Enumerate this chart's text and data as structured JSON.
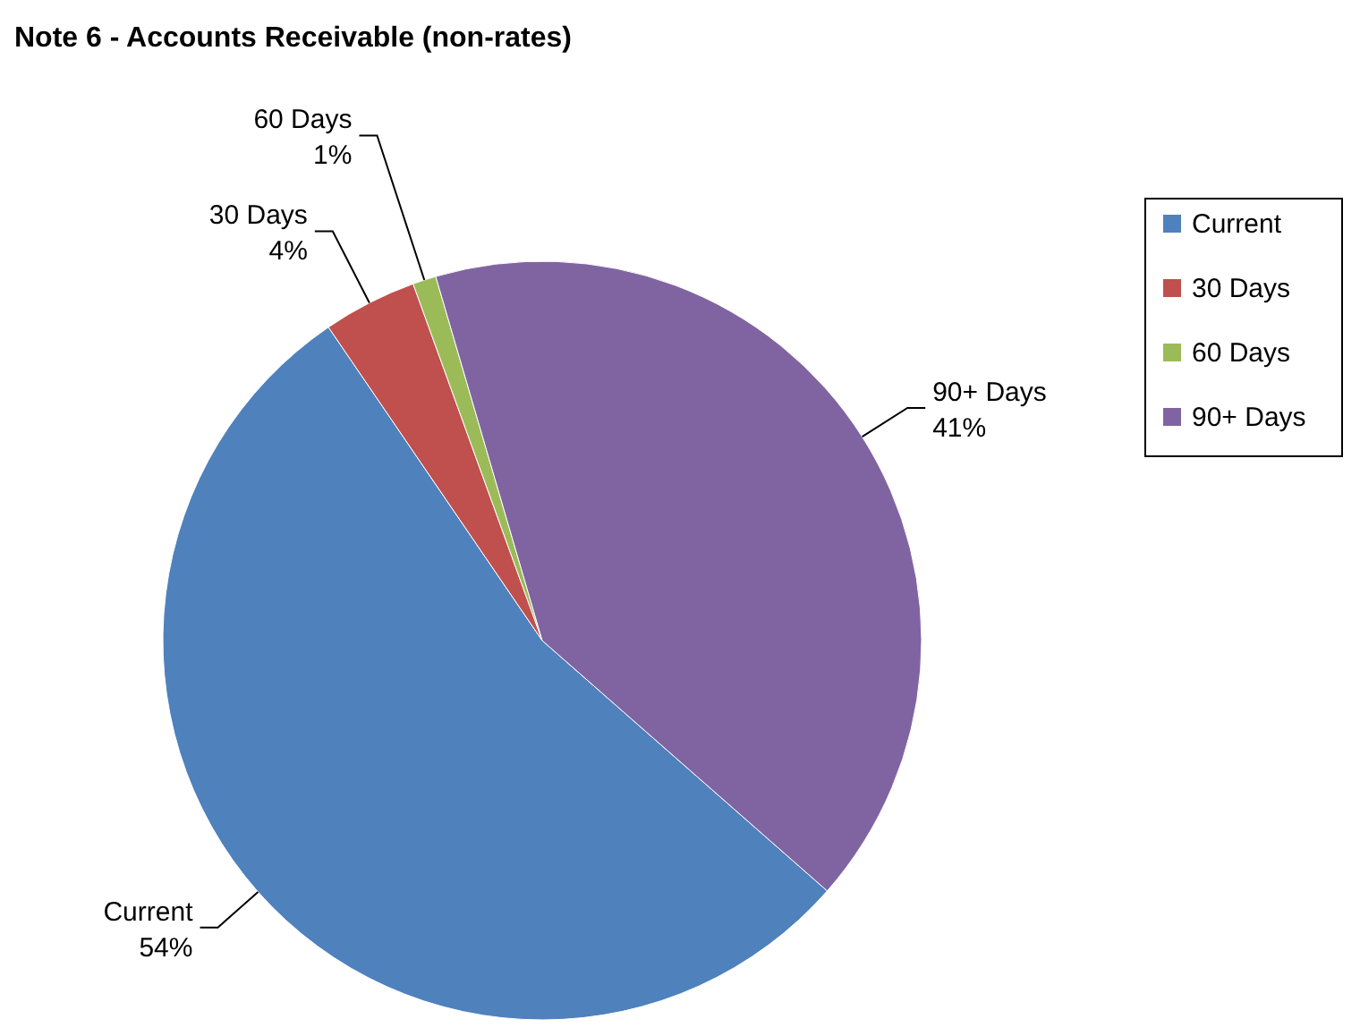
{
  "chart_data": {
    "type": "pie",
    "title": "Note 6 - Accounts Receivable (non-rates)",
    "categories": [
      "Current",
      "30 Days",
      "60 Days",
      "90+ Days"
    ],
    "values": [
      54,
      4,
      1,
      41
    ],
    "value_labels": [
      "54%",
      "4%",
      "1%",
      "41%"
    ],
    "colors": [
      "#4f81bd",
      "#c0504d",
      "#9bbb59",
      "#8064a2"
    ],
    "legend": "right"
  }
}
